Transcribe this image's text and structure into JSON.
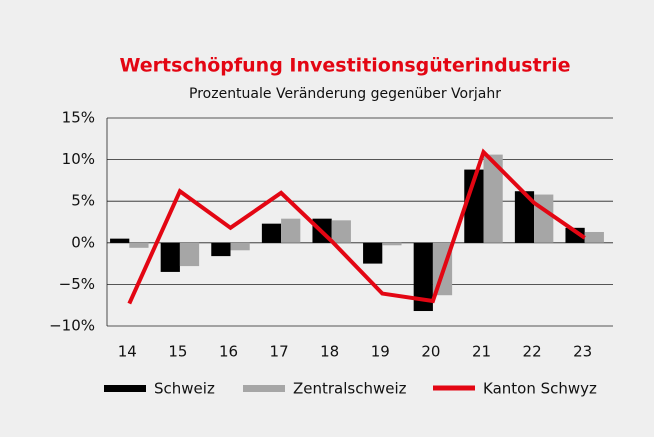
{
  "chart_data": {
    "type": "bar",
    "title": "Wertschöpfung Investitionsgüterindustrie",
    "subtitle": "Prozentuale Veränderung gegenüber Vorjahr",
    "categories": [
      "14",
      "15",
      "16",
      "17",
      "18",
      "19",
      "20",
      "21",
      "22",
      "23"
    ],
    "series": [
      {
        "name": "Schweiz",
        "color": "#000000",
        "values": [
          0.5,
          -3.5,
          -1.6,
          2.3,
          2.9,
          -2.5,
          -8.2,
          8.8,
          6.2,
          1.8
        ]
      },
      {
        "name": "Zentralschweiz",
        "color": "#a6a6a6",
        "values": [
          -0.6,
          -2.8,
          -0.9,
          2.9,
          2.7,
          -0.3,
          -6.3,
          10.6,
          5.8,
          1.3
        ]
      },
      {
        "name": "Kanton Schwyz",
        "color": "#e30613",
        "type": "line",
        "values": [
          -7.3,
          6.2,
          1.8,
          6.0,
          0.2,
          -6.1,
          -7.0,
          10.9,
          4.8,
          0.6
        ]
      }
    ],
    "ylim": [
      -10,
      15
    ],
    "yticks": [
      {
        "value": -10,
        "label": "−10%"
      },
      {
        "value": -5,
        "label": "−5%"
      },
      {
        "value": 0,
        "label": "0%"
      },
      {
        "value": 5,
        "label": "5%"
      },
      {
        "value": 10,
        "label": "10%"
      },
      {
        "value": 15,
        "label": "15%"
      }
    ],
    "grid": true
  }
}
